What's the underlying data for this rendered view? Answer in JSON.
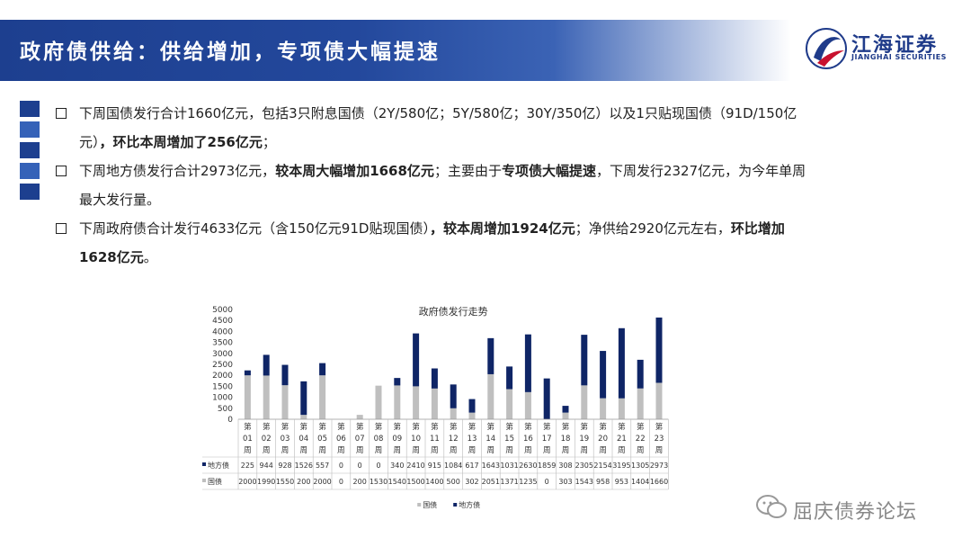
{
  "header": {
    "title": "政府债供给：供给增加，专项债大幅提速"
  },
  "logo": {
    "cn": "江海证券",
    "en": "JIANGHAI SECURITIES"
  },
  "colors": {
    "brand_blue": "#1f3b8a",
    "square_colors": [
      "#1d3f8f",
      "#3562b8",
      "#1d3f8f",
      "#3562b8",
      "#1d3f8f"
    ],
    "guozhai": "#bfbfbf",
    "difangzhai": "#0f2566"
  },
  "bullets": [
    {
      "segments": [
        {
          "text": "下周国债发行合计1660亿元，包括3只附息国债（2Y/580亿；5Y/580亿；30Y/350亿）以及1只贴现国债（91D/150亿元）",
          "bold": false
        },
        {
          "text": "，环比本周增加了256亿元",
          "bold": true
        },
        {
          "text": "；",
          "bold": false
        }
      ]
    },
    {
      "segments": [
        {
          "text": "下周地方债发行合计2973亿元，",
          "bold": false
        },
        {
          "text": "较本周大幅增加1668亿元",
          "bold": true
        },
        {
          "text": "；主要由于",
          "bold": false
        },
        {
          "text": "专项债大幅提速",
          "bold": true
        },
        {
          "text": "，下周发行2327亿元，为今年单周最大发行量。",
          "bold": false
        }
      ]
    },
    {
      "segments": [
        {
          "text": "下周政府债合计发行4633亿元（含150亿元91D贴现国债）",
          "bold": false
        },
        {
          "text": "，较本周增加1924亿元",
          "bold": true
        },
        {
          "text": "；净供给2920亿元左右，",
          "bold": false
        },
        {
          "text": "环比增加1628亿元",
          "bold": true
        },
        {
          "text": "。",
          "bold": false
        }
      ]
    }
  ],
  "chart_data": {
    "type": "bar",
    "stacked": true,
    "title": "政府债发行走势",
    "categories": [
      "第01周",
      "第02周",
      "第03周",
      "第04周",
      "第05周",
      "第06周",
      "第07周",
      "第08周",
      "第09周",
      "第10周",
      "第11周",
      "第12周",
      "第13周",
      "第14周",
      "第15周",
      "第16周",
      "第17周",
      "第18周",
      "第19周",
      "第20周",
      "第21周",
      "第22周",
      "第23周"
    ],
    "category_top": "第",
    "category_mid": [
      "01",
      "02",
      "03",
      "04",
      "05",
      "06",
      "07",
      "08",
      "09",
      "10",
      "11",
      "12",
      "13",
      "14",
      "15",
      "16",
      "17",
      "18",
      "19",
      "20",
      "21",
      "22",
      "23"
    ],
    "category_bottom": "周",
    "series": [
      {
        "name": "地方债",
        "values": [
          225,
          944,
          928,
          1526,
          557,
          0,
          0,
          0,
          340,
          2410,
          915,
          1084,
          617,
          1643,
          1031,
          2630,
          1859,
          308,
          2305,
          2154,
          3195,
          1305,
          2973
        ]
      },
      {
        "name": "国债",
        "values": [
          2000,
          1990,
          1550,
          200,
          2000,
          0,
          200,
          1530,
          1540,
          1500,
          1400,
          500,
          302,
          2051,
          1371,
          1235,
          0,
          303,
          1543,
          958,
          953,
          1404,
          1660
        ]
      }
    ],
    "ylim": [
      0,
      5000
    ],
    "yticks": [
      0,
      500,
      1000,
      1500,
      2000,
      2500,
      3000,
      3500,
      4000,
      4500,
      5000
    ],
    "legend": [
      "国债",
      "地方债"
    ],
    "grid": false
  },
  "watermark": {
    "text": "屈庆债券论坛"
  }
}
